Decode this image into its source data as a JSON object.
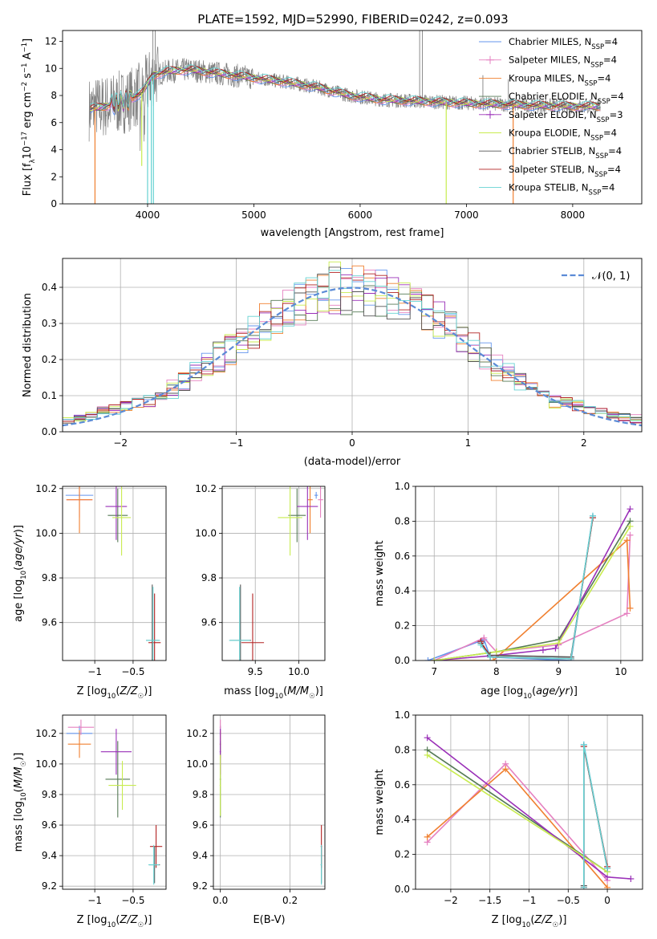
{
  "title": "PLATE=1592, MJD=52990, FIBERID=0242, z=0.093",
  "colors": {
    "chabrier_miles": "#6495ed",
    "salpeter_miles": "#e580c0",
    "kroupa_miles": "#f08030",
    "chabrier_elodie": "#557a55",
    "salpeter_elodie": "#9a30b8",
    "kroupa_elodie": "#c8ec50",
    "chabrier_stelib": "#555555",
    "salpeter_stelib": "#b22222",
    "kroupa_stelib": "#66d2d2",
    "data": "#808080",
    "gaussian": "#5b8bd6"
  },
  "chart_data": [
    {
      "type": "line",
      "id": "spectrum",
      "xlabel": "wavelength [Angstrom, rest frame]",
      "ylabel": "Flux [f_λ 10^-17 erg cm^-2 s^-1 A^-1]",
      "xlim": [
        3200,
        8650
      ],
      "ylim": [
        0,
        12.8
      ],
      "xticks": [
        4000,
        5000,
        6000,
        7000,
        8000
      ],
      "yticks": [
        0,
        2,
        4,
        6,
        8,
        10,
        12
      ],
      "grid": false,
      "legend": "top-right",
      "legend_entries": [
        {
          "key": "chabrier_miles",
          "label": "Chabrier MILES, N",
          "sub": "SSP",
          "tail": "=4",
          "marker": "none"
        },
        {
          "key": "salpeter_miles",
          "label": "Salpeter MILES, N",
          "sub": "SSP",
          "tail": "=4",
          "marker": "plus"
        },
        {
          "key": "kroupa_miles",
          "label": "Kroupa MILES, N",
          "sub": "SSP",
          "tail": "=4",
          "marker": "none"
        },
        {
          "key": "chabrier_elodie",
          "label": "Chabrier ELODIE, N",
          "sub": "SSP",
          "tail": "=4",
          "marker": "none"
        },
        {
          "key": "salpeter_elodie",
          "label": "Salpeter ELODIE, N",
          "sub": "SSP",
          "tail": "=3",
          "marker": "plus"
        },
        {
          "key": "kroupa_elodie",
          "label": "Kroupa ELODIE, N",
          "sub": "SSP",
          "tail": "=4",
          "marker": "none"
        },
        {
          "key": "chabrier_stelib",
          "label": "Chabrier STELIB, N",
          "sub": "SSP",
          "tail": "=4",
          "marker": "none"
        },
        {
          "key": "salpeter_stelib",
          "label": "Salpeter STELIB, N",
          "sub": "SSP",
          "tail": "=4",
          "marker": "none"
        },
        {
          "key": "kroupa_stelib",
          "label": "Kroupa STELIB, N",
          "sub": "SSP",
          "tail": "=4",
          "marker": "none"
        }
      ],
      "continuum": [
        [
          3450,
          7.0
        ],
        [
          3600,
          7.2
        ],
        [
          3800,
          7.6
        ],
        [
          3950,
          8.2
        ],
        [
          4050,
          9.5
        ],
        [
          4200,
          9.8
        ],
        [
          4400,
          9.9
        ],
        [
          4700,
          9.6
        ],
        [
          5000,
          9.3
        ],
        [
          5300,
          9.0
        ],
        [
          5600,
          8.6
        ],
        [
          5900,
          8.0
        ],
        [
          6200,
          7.7
        ],
        [
          6500,
          7.6
        ],
        [
          6800,
          7.5
        ],
        [
          7100,
          7.4
        ],
        [
          7500,
          7.3
        ],
        [
          8000,
          7.2
        ],
        [
          8250,
          7.2
        ]
      ]
    },
    {
      "type": "line",
      "id": "residuals",
      "xlabel": "(data-model)/error",
      "ylabel": "Normed distribution",
      "xlim": [
        -2.5,
        2.5
      ],
      "ylim": [
        0,
        0.48
      ],
      "xticks": [
        -2,
        -1,
        0,
        1,
        2
      ],
      "yticks": [
        0.0,
        0.1,
        0.2,
        0.3,
        0.4
      ],
      "grid": true,
      "legend": "top-right",
      "legend_label": "𝒩(0, 1)"
    },
    {
      "type": "scatter",
      "id": "age_vs_z",
      "xlabel": "Z [log10(Z/Z☉)]",
      "ylabel": "age [log10(age/yr)]",
      "xlim": [
        -1.42,
        -0.07
      ],
      "ylim": [
        9.43,
        10.21
      ],
      "xticks": [
        -1.0,
        -0.5
      ],
      "yticks": [
        9.6,
        9.8,
        10.0,
        10.2
      ],
      "grid": true,
      "points": [
        {
          "s": "chabrier_miles",
          "x": -1.2,
          "y": 10.17,
          "xe": 0.18,
          "ye": 0.015
        },
        {
          "s": "salpeter_miles",
          "x": -1.2,
          "y": 10.15,
          "xe": 0.17,
          "ye": 0.08
        },
        {
          "s": "kroupa_miles",
          "x": -1.2,
          "y": 10.15,
          "xe": 0.17,
          "ye": 0.15
        },
        {
          "s": "chabrier_elodie",
          "x": -0.7,
          "y": 10.08,
          "xe": 0.13,
          "ye": 0.12
        },
        {
          "s": "salpeter_elodie",
          "x": -0.72,
          "y": 10.12,
          "xe": 0.14,
          "ye": 0.15
        },
        {
          "s": "kroupa_elodie",
          "x": -0.65,
          "y": 10.07,
          "xe": 0.12,
          "ye": 0.17
        },
        {
          "s": "chabrier_stelib",
          "x": -0.25,
          "y": 9.52,
          "xe": 0.08,
          "ye": 0.25
        },
        {
          "s": "salpeter_stelib",
          "x": -0.22,
          "y": 9.51,
          "xe": 0.08,
          "ye": 0.22
        },
        {
          "s": "kroupa_stelib",
          "x": -0.24,
          "y": 9.52,
          "xe": 0.09,
          "ye": 0.24
        }
      ]
    },
    {
      "type": "scatter",
      "id": "age_vs_mass",
      "xlabel": "mass [log10(M/M☉)]",
      "ylabel": "",
      "xlim": [
        9.12,
        10.3
      ],
      "ylim": [
        9.43,
        10.21
      ],
      "xticks": [
        9.5,
        10.0
      ],
      "yticks": [
        9.6,
        9.8,
        10.0,
        10.2
      ],
      "grid": true,
      "points": [
        {
          "s": "chabrier_miles",
          "x": 10.2,
          "y": 10.17,
          "xe": 0.02,
          "ye": 0.015
        },
        {
          "s": "salpeter_miles",
          "x": 10.25,
          "y": 10.15,
          "xe": 0.03,
          "ye": 0.08
        },
        {
          "s": "kroupa_miles",
          "x": 10.13,
          "y": 10.15,
          "xe": 0.03,
          "ye": 0.15
        },
        {
          "s": "chabrier_elodie",
          "x": 9.98,
          "y": 10.08,
          "xe": 0.1,
          "ye": 0.12
        },
        {
          "s": "salpeter_elodie",
          "x": 10.1,
          "y": 10.12,
          "xe": 0.12,
          "ye": 0.15
        },
        {
          "s": "kroupa_elodie",
          "x": 9.9,
          "y": 10.07,
          "xe": 0.14,
          "ye": 0.17
        },
        {
          "s": "chabrier_stelib",
          "x": 9.33,
          "y": 9.52,
          "xe": 0.12,
          "ye": 0.25
        },
        {
          "s": "salpeter_stelib",
          "x": 9.47,
          "y": 9.51,
          "xe": 0.13,
          "ye": 0.22
        },
        {
          "s": "kroupa_stelib",
          "x": 9.32,
          "y": 9.52,
          "xe": 0.12,
          "ye": 0.24
        }
      ]
    },
    {
      "type": "line",
      "id": "mw_vs_age",
      "xlabel": "age [log10(age/yr)]",
      "ylabel": "mass weight",
      "xlim": [
        6.7,
        10.35
      ],
      "ylim": [
        0,
        1.0
      ],
      "xticks": [
        7,
        8,
        9,
        10
      ],
      "yticks": [
        0.0,
        0.2,
        0.4,
        0.6,
        0.8,
        1.0
      ],
      "grid": true,
      "series": [
        {
          "s": "chabrier_miles",
          "x": [
            6.9,
            7.8,
            7.9,
            9.2,
            9.55
          ],
          "y": [
            0.0,
            0.12,
            0.02,
            0.0,
            0.83
          ]
        },
        {
          "s": "salpeter_miles",
          "x": [
            7.0,
            7.8,
            8.0,
            9.0,
            10.1,
            10.15
          ],
          "y": [
            0.0,
            0.13,
            0.05,
            0.09,
            0.27,
            0.72
          ]
        },
        {
          "s": "kroupa_miles",
          "x": [
            7.0,
            7.95,
            10.1,
            10.15
          ],
          "y": [
            0.0,
            0.0,
            0.69,
            0.3
          ]
        },
        {
          "s": "chabrier_elodie",
          "x": [
            7.0,
            8.0,
            9.0,
            10.15
          ],
          "y": [
            0.0,
            0.05,
            0.12,
            0.8
          ]
        },
        {
          "s": "salpeter_elodie",
          "x": [
            7.0,
            8.0,
            8.75,
            8.95,
            10.15
          ],
          "y": [
            0.0,
            0.03,
            0.06,
            0.07,
            0.87
          ]
        },
        {
          "s": "kroupa_elodie",
          "x": [
            7.0,
            8.0,
            9.0,
            10.15
          ],
          "y": [
            0.0,
            0.05,
            0.1,
            0.77
          ]
        },
        {
          "s": "chabrier_stelib",
          "x": [
            7.75,
            7.9,
            9.2,
            9.55
          ],
          "y": [
            0.1,
            0.03,
            0.02,
            0.82
          ]
        },
        {
          "s": "salpeter_stelib",
          "x": [
            7.75,
            7.9,
            9.2,
            9.55
          ],
          "y": [
            0.11,
            0.02,
            0.01,
            0.82
          ]
        },
        {
          "s": "kroupa_stelib",
          "x": [
            7.75,
            7.9,
            9.2,
            9.55
          ],
          "y": [
            0.09,
            0.02,
            0.01,
            0.83
          ]
        }
      ]
    },
    {
      "type": "scatter",
      "id": "mass_vs_z",
      "xlabel": "Z [log10(Z/Z☉)]",
      "ylabel": "mass [log10(M/M☉)]",
      "xlim": [
        -1.42,
        -0.07
      ],
      "ylim": [
        9.18,
        10.32
      ],
      "xticks": [
        -1.0,
        -0.5
      ],
      "yticks": [
        9.2,
        9.4,
        9.6,
        9.8,
        10.0,
        10.2
      ],
      "grid": true,
      "points": [
        {
          "s": "chabrier_miles",
          "x": -1.2,
          "y": 10.2,
          "xe": 0.17,
          "ye": 0.05
        },
        {
          "s": "salpeter_miles",
          "x": -1.18,
          "y": 10.24,
          "xe": 0.17,
          "ye": 0.05
        },
        {
          "s": "kroupa_miles",
          "x": -1.2,
          "y": 10.13,
          "xe": 0.15,
          "ye": 0.09
        },
        {
          "s": "chabrier_elodie",
          "x": -0.7,
          "y": 9.9,
          "xe": 0.16,
          "ye": 0.25
        },
        {
          "s": "salpeter_elodie",
          "x": -0.72,
          "y": 10.08,
          "xe": 0.2,
          "ye": 0.15
        },
        {
          "s": "kroupa_elodie",
          "x": -0.64,
          "y": 9.86,
          "xe": 0.18,
          "ye": 0.16
        },
        {
          "s": "chabrier_stelib",
          "x": -0.22,
          "y": 9.34,
          "xe": 0.07,
          "ye": 0.12
        },
        {
          "s": "salpeter_stelib",
          "x": -0.2,
          "y": 9.46,
          "xe": 0.08,
          "ye": 0.14
        },
        {
          "s": "kroupa_stelib",
          "x": -0.23,
          "y": 9.34,
          "xe": 0.07,
          "ye": 0.13
        }
      ]
    },
    {
      "type": "scatter",
      "id": "mass_vs_ebv",
      "xlabel": "E(B-V)",
      "ylabel": "",
      "xlim": [
        -0.02,
        0.3
      ],
      "ylim": [
        9.18,
        10.32
      ],
      "xticks": [
        0.0,
        0.2
      ],
      "yticks": [
        9.2,
        9.4,
        9.6,
        9.8,
        10.0,
        10.2
      ],
      "grid": true,
      "points": [
        {
          "s": "chabrier_miles",
          "x": 0.0,
          "y": 10.2,
          "xe": 0.002,
          "ye": 0.05
        },
        {
          "s": "salpeter_miles",
          "x": 0.0,
          "y": 10.24,
          "xe": 0.002,
          "ye": 0.05
        },
        {
          "s": "kroupa_miles",
          "x": 0.0,
          "y": 10.13,
          "xe": 0.002,
          "ye": 0.09
        },
        {
          "s": "chabrier_elodie",
          "x": 0.0,
          "y": 9.9,
          "xe": 0.002,
          "ye": 0.25
        },
        {
          "s": "salpeter_elodie",
          "x": 0.0,
          "y": 10.08,
          "xe": 0.002,
          "ye": 0.15
        },
        {
          "s": "kroupa_elodie",
          "x": 0.0,
          "y": 9.86,
          "xe": 0.002,
          "ye": 0.2
        },
        {
          "s": "chabrier_stelib",
          "x": 0.29,
          "y": 9.34,
          "xe": 0.002,
          "ye": 0.12
        },
        {
          "s": "salpeter_stelib",
          "x": 0.29,
          "y": 9.46,
          "xe": 0.002,
          "ye": 0.14
        },
        {
          "s": "kroupa_stelib",
          "x": 0.29,
          "y": 9.34,
          "xe": 0.002,
          "ye": 0.13
        }
      ]
    },
    {
      "type": "line",
      "id": "mw_vs_z",
      "xlabel": "Z [log10(Z/Z☉)]",
      "ylabel": "mass weight",
      "xlim": [
        -2.45,
        0.45
      ],
      "ylim": [
        0,
        1.0
      ],
      "xticks": [
        -2.0,
        -1.5,
        -1.0,
        -0.5,
        0.0
      ],
      "yticks": [
        0.0,
        0.2,
        0.4,
        0.6,
        0.8,
        1.0
      ],
      "grid": true,
      "series": [
        {
          "s": "chabrier_miles",
          "x": [
            -0.3,
            -0.3,
            0.0
          ],
          "y": [
            0.01,
            0.83,
            0.12
          ]
        },
        {
          "s": "salpeter_miles",
          "x": [
            -2.3,
            -1.3,
            0.0
          ],
          "y": [
            0.27,
            0.72,
            0.05
          ]
        },
        {
          "s": "kroupa_miles",
          "x": [
            -2.3,
            -1.3,
            0.0
          ],
          "y": [
            0.3,
            0.69,
            0.01
          ]
        },
        {
          "s": "chabrier_elodie",
          "x": [
            -2.3,
            0.0
          ],
          "y": [
            0.8,
            0.1
          ]
        },
        {
          "s": "salpeter_elodie",
          "x": [
            -2.3,
            0.0,
            0.3
          ],
          "y": [
            0.87,
            0.07,
            0.06
          ]
        },
        {
          "s": "kroupa_elodie",
          "x": [
            -2.3,
            0.0
          ],
          "y": [
            0.77,
            0.1
          ]
        },
        {
          "s": "chabrier_stelib",
          "x": [
            -0.3,
            -0.3,
            0.0
          ],
          "y": [
            0.02,
            0.82,
            0.12
          ]
        },
        {
          "s": "salpeter_stelib",
          "x": [
            -0.3,
            -0.3,
            0.0
          ],
          "y": [
            0.01,
            0.82,
            0.13
          ]
        },
        {
          "s": "kroupa_stelib",
          "x": [
            -0.3,
            -0.3,
            0.0
          ],
          "y": [
            0.01,
            0.83,
            0.12
          ]
        }
      ]
    }
  ]
}
